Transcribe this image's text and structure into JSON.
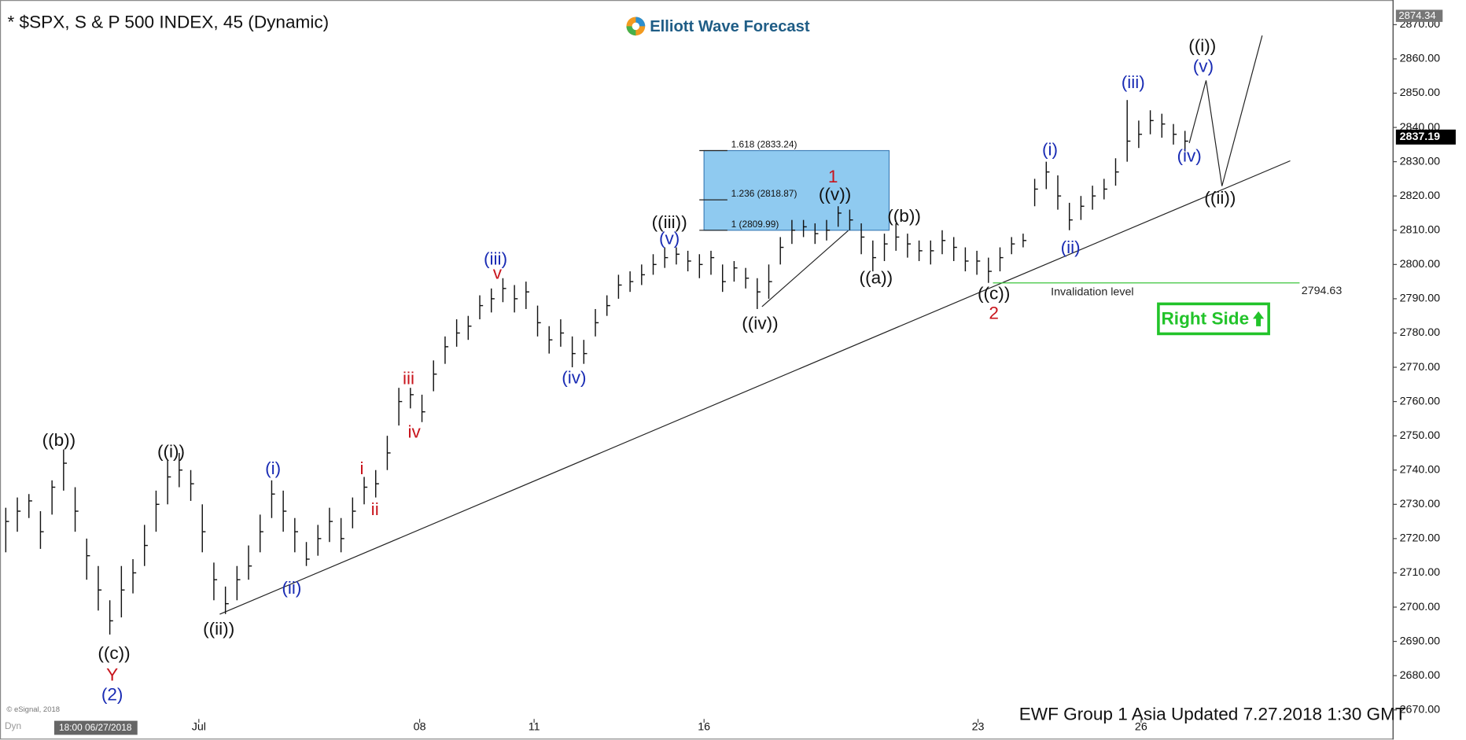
{
  "chart_data": {
    "type": "ohlc",
    "title": "* $SPX, S & P 500 INDEX, 45 (Dynamic)",
    "logo": "Elliott Wave Forecast",
    "footer": "EWF Group 1 Asia Updated 7.27.2018 1:30 GMT",
    "copyright": "© eSignal, 2018",
    "mode_label": "Dyn",
    "cursor_label": "18:00 06/27/2018",
    "badge": "Right Side",
    "color": "#111111",
    "x": [
      0,
      1,
      2,
      3,
      4,
      5,
      6,
      7,
      8,
      9,
      10,
      11,
      12,
      13,
      14,
      15,
      16,
      17,
      18,
      19,
      20,
      21,
      22,
      23,
      24,
      25,
      26,
      27,
      28,
      29,
      30,
      31,
      32,
      33,
      34,
      35,
      36,
      37,
      38,
      39,
      40,
      41,
      42,
      43,
      44,
      45,
      46,
      47,
      48,
      49,
      50,
      51,
      52,
      53,
      54,
      55,
      56,
      57,
      58,
      59,
      60,
      61,
      62,
      63,
      64,
      65,
      66,
      67,
      68,
      69,
      70,
      71,
      72,
      73,
      74,
      75,
      76,
      77,
      78,
      79,
      80,
      81,
      82,
      83,
      84,
      85,
      86,
      87,
      88,
      89,
      90,
      91,
      92,
      93,
      94,
      95,
      96,
      97,
      98,
      99,
      100,
      101,
      102
    ],
    "high": [
      2729,
      2732,
      2733,
      2728,
      2737,
      2746,
      2735,
      2720,
      2712,
      2702,
      2712,
      2714,
      2724,
      2734,
      2743,
      2745,
      2740,
      2730,
      2713,
      2706,
      2712,
      2718,
      2727,
      2737,
      2734,
      2726,
      2719,
      2724,
      2729,
      2726,
      2732,
      2738,
      2740,
      2750,
      2764,
      2764,
      2762,
      2772,
      2779,
      2784,
      2785,
      2791,
      2793,
      2796,
      2794,
      2795,
      2788,
      2782,
      2784,
      2779,
      2778,
      2787,
      2791,
      2797,
      2798,
      2800,
      2803,
      2805,
      2805,
      2804,
      2803,
      2804,
      2800,
      2801,
      2799,
      2796,
      2800,
      2808,
      2813,
      2813,
      2812,
      2813,
      2817,
      2816,
      2812,
      2807,
      2809,
      2812,
      2809,
      2807,
      2807,
      2810,
      2808,
      2805,
      2804,
      2802,
      2805,
      2808,
      2809,
      2825,
      2830,
      2826,
      2818,
      2820,
      2823,
      2825,
      2831,
      2848,
      2842,
      2845,
      2844,
      2841,
      2839
    ],
    "low": [
      2716,
      2722,
      2726,
      2717,
      2727,
      2734,
      2722,
      2708,
      2699,
      2692,
      2697,
      2704,
      2712,
      2722,
      2730,
      2735,
      2731,
      2716,
      2702,
      2698,
      2702,
      2708,
      2716,
      2726,
      2722,
      2716,
      2712,
      2715,
      2719,
      2716,
      2723,
      2730,
      2732,
      2740,
      2753,
      2758,
      2754,
      2763,
      2771,
      2776,
      2778,
      2784,
      2786,
      2789,
      2786,
      2787,
      2779,
      2774,
      2776,
      2770,
      2771,
      2779,
      2785,
      2790,
      2792,
      2794,
      2797,
      2799,
      2800,
      2798,
      2796,
      2797,
      2792,
      2795,
      2793,
      2787,
      2790,
      2800,
      2806,
      2808,
      2806,
      2807,
      2811,
      2810,
      2803,
      2798,
      2801,
      2804,
      2802,
      2801,
      2800,
      2803,
      2801,
      2798,
      2797,
      2794.63,
      2798,
      2803,
      2805,
      2817,
      2822,
      2816,
      2810,
      2813,
      2816,
      2819,
      2823,
      2830,
      2834,
      2838,
      2837,
      2835,
      2833
    ],
    "close": [
      2725,
      2728,
      2731,
      2722,
      2735,
      2742,
      2728,
      2715,
      2705,
      2696,
      2705,
      2710,
      2718,
      2730,
      2738,
      2740,
      2736,
      2722,
      2708,
      2701,
      2708,
      2712,
      2722,
      2733,
      2728,
      2722,
      2714,
      2720,
      2725,
      2720,
      2728,
      2735,
      2736,
      2745,
      2760,
      2762,
      2757,
      2768,
      2776,
      2780,
      2782,
      2788,
      2790,
      2793,
      2790,
      2792,
      2783,
      2778,
      2780,
      2774,
      2774,
      2783,
      2788,
      2794,
      2795,
      2797,
      2800,
      2802,
      2803,
      2801,
      2800,
      2802,
      2795,
      2799,
      2796,
      2792,
      2795,
      2805,
      2810,
      2811,
      2809,
      2810,
      2815,
      2813,
      2808,
      2802,
      2806,
      2808,
      2806,
      2804,
      2804,
      2807,
      2805,
      2801,
      2801,
      2798,
      2802,
      2806,
      2807,
      2822,
      2827,
      2820,
      2813,
      2817,
      2820,
      2822,
      2827,
      2836,
      2838,
      2842,
      2841,
      2838,
      2836
    ],
    "xlim": [
      -0.5,
      120
    ],
    "xticks": [
      {
        "value": 16.7,
        "label": "Jul"
      },
      {
        "value": 35.8,
        "label": "08"
      },
      {
        "value": 45.7,
        "label": "11"
      },
      {
        "value": 60.4,
        "label": "16"
      },
      {
        "value": 84.1,
        "label": "23"
      },
      {
        "value": 98.2,
        "label": "26"
      }
    ],
    "ylim": [
      2663,
      2875
    ],
    "yticks": [
      {
        "value": 2670,
        "label": "2670.00"
      },
      {
        "value": 2680,
        "label": "2680.00"
      },
      {
        "value": 2690,
        "label": "2690.00"
      },
      {
        "value": 2700,
        "label": "2700.00"
      },
      {
        "value": 2710,
        "label": "2710.00"
      },
      {
        "value": 2720,
        "label": "2720.00"
      },
      {
        "value": 2730,
        "label": "2730.00"
      },
      {
        "value": 2740,
        "label": "2740.00"
      },
      {
        "value": 2750,
        "label": "2750.00"
      },
      {
        "value": 2760,
        "label": "2760.00"
      },
      {
        "value": 2770,
        "label": "2770.00"
      },
      {
        "value": 2780,
        "label": "2780.00"
      },
      {
        "value": 2790,
        "label": "2790.00"
      },
      {
        "value": 2800,
        "label": "2800.00"
      },
      {
        "value": 2810,
        "label": "2810.00"
      },
      {
        "value": 2820,
        "label": "2820.00"
      },
      {
        "value": 2830,
        "label": "2830.00"
      },
      {
        "value": 2840,
        "label": "2840.00"
      },
      {
        "value": 2850,
        "label": "2850.00"
      },
      {
        "value": 2860,
        "label": "2860.00"
      },
      {
        "value": 2870,
        "label": "2870.00"
      }
    ],
    "last_price": {
      "value": 2837.19,
      "label": "2837.19"
    },
    "axis_top_tag": {
      "value": 2874.34,
      "label": "2874.34"
    },
    "fib_levels": [
      {
        "value": 2833.24,
        "label": "1.618 (2833.24)"
      },
      {
        "value": 2818.87,
        "label": "1.236 (2818.87)"
      },
      {
        "value": 2809.99,
        "label": "1 (2809.99)"
      }
    ],
    "invalidation": {
      "text": "Invalidation level",
      "value": 2794.63,
      "label": "2794.63"
    },
    "annotations": [
      {
        "text": "((b))",
        "color": "#111111"
      },
      {
        "text": "((c))",
        "color": "#111111"
      },
      {
        "text": "((i))",
        "color": "#111111"
      },
      {
        "text": "((ii))",
        "color": "#111111"
      },
      {
        "text": "((iii))",
        "color": "#111111"
      },
      {
        "text": "((iv))",
        "color": "#111111"
      },
      {
        "text": "((v))",
        "color": "#111111"
      },
      {
        "text": "((a))",
        "color": "#111111"
      },
      {
        "text": "((b))",
        "color": "#111111"
      },
      {
        "text": "((c))",
        "color": "#111111"
      },
      {
        "text": "((i))",
        "color": "#111111"
      },
      {
        "text": "((ii))",
        "color": "#111111"
      },
      {
        "text": "Y",
        "color": "#c8141c"
      },
      {
        "text": "i",
        "color": "#c8141c"
      },
      {
        "text": "ii",
        "color": "#c8141c"
      },
      {
        "text": "iii",
        "color": "#c8141c"
      },
      {
        "text": "iv",
        "color": "#c8141c"
      },
      {
        "text": "v",
        "color": "#c8141c"
      },
      {
        "text": "1",
        "color": "#c8141c"
      },
      {
        "text": "2",
        "color": "#c8141c"
      },
      {
        "text": "(2)",
        "color": "#1a2cb4"
      },
      {
        "text": "(i)",
        "color": "#1a2cb4"
      },
      {
        "text": "(ii)",
        "color": "#1a2cb4"
      },
      {
        "text": "(iii)",
        "color": "#1a2cb4"
      },
      {
        "text": "(iv)",
        "color": "#1a2cb4"
      },
      {
        "text": "(v)",
        "color": "#1a2cb4"
      },
      {
        "text": "(i)",
        "color": "#1a2cb4"
      },
      {
        "text": "(ii)",
        "color": "#1a2cb4"
      },
      {
        "text": "(iii)",
        "color": "#1a2cb4"
      },
      {
        "text": "(iv)",
        "color": "#1a2cb4"
      },
      {
        "text": "(v)",
        "color": "#1a2cb4"
      }
    ]
  }
}
